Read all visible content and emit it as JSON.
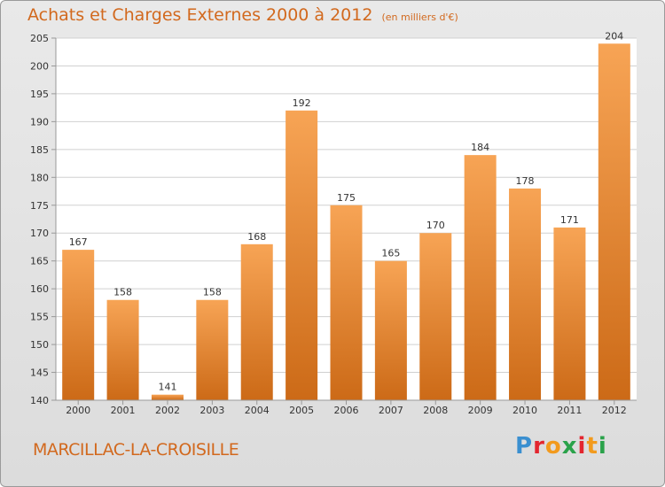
{
  "header": {
    "title": "Achats et Charges Externes 2000 à 2012",
    "subtitle": "(en milliers d'€)"
  },
  "footer": {
    "commune": "MARCILLAC-LA-CROISILLE",
    "logo_letters": [
      "P",
      "r",
      "o",
      "x",
      "i",
      "t",
      "i"
    ],
    "logo_colors": [
      "#3a8fd0",
      "#e3262f",
      "#f29a1d",
      "#2aa24a",
      "#e3262f",
      "#f29a1d",
      "#2aa24a"
    ]
  },
  "colors": {
    "bar_top": "#f7a455",
    "bar_bottom": "#cc6a17",
    "text": "#d2691e",
    "plot_bg": "#ffffff",
    "grid": "#d0d0d0"
  },
  "chart_data": {
    "type": "bar",
    "title": "Achats et Charges Externes 2000 à 2012",
    "subtitle": "(en milliers d'€)",
    "categories": [
      "2000",
      "2001",
      "2002",
      "2003",
      "2004",
      "2005",
      "2006",
      "2007",
      "2008",
      "2009",
      "2010",
      "2011",
      "2012"
    ],
    "values": [
      167,
      158,
      141,
      158,
      168,
      192,
      175,
      165,
      170,
      184,
      178,
      171,
      204
    ],
    "data_labels": [
      "167",
      "158",
      "141",
      "158",
      "168",
      "192",
      "175",
      "165",
      "170",
      "184",
      "178",
      "171",
      "204"
    ],
    "ylim": [
      140,
      205
    ],
    "yticks": [
      140,
      145,
      150,
      155,
      160,
      165,
      170,
      175,
      180,
      185,
      190,
      195,
      200,
      205
    ],
    "grid": true,
    "legend": false
  }
}
